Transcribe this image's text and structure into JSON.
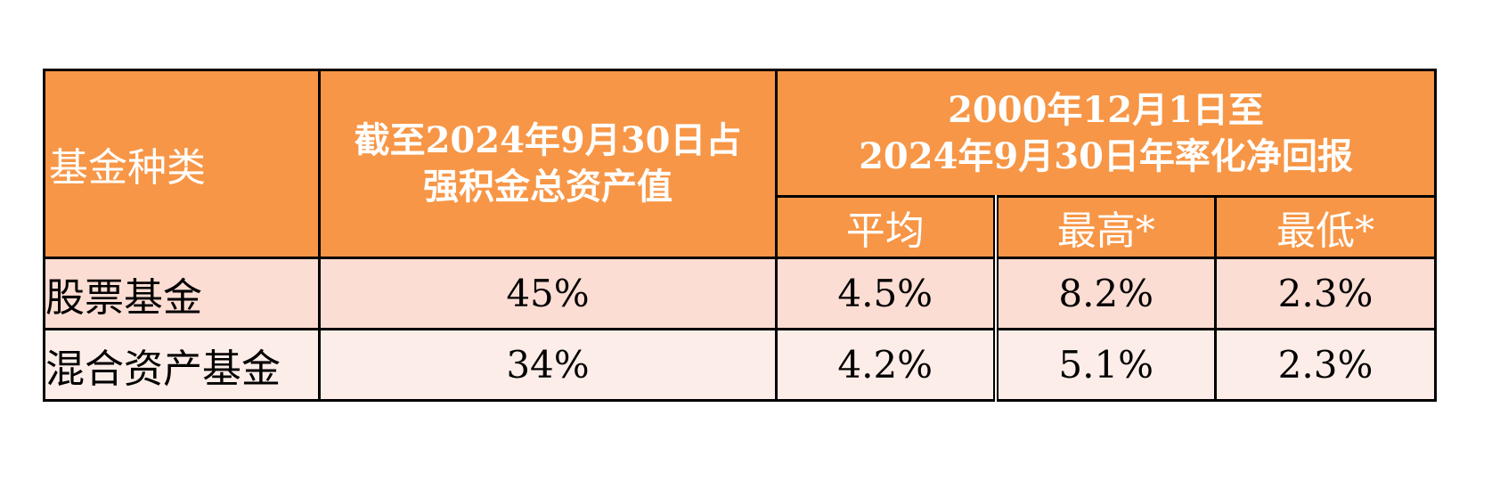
{
  "table": {
    "header": {
      "fund_type": "基金种类",
      "share_line1": "截至2024年9月30日占",
      "share_line2": "强积金总资产值",
      "return_line1": "2000年12月1日至",
      "return_line2": "2024年9月30日年率化净回报",
      "average": "平均",
      "highest": "最高*",
      "lowest": "最低*"
    },
    "rows": [
      {
        "fund_type": "股票基金",
        "share": "45%",
        "average": "4.5%",
        "highest": "8.2%",
        "lowest": "2.3%"
      },
      {
        "fund_type": "混合资产基金",
        "share": "34%",
        "average": "4.2%",
        "highest": "5.1%",
        "lowest": "2.3%"
      }
    ],
    "colors": {
      "header_bg": "#f79646",
      "header_text": "#ffffff",
      "row1_bg": "#fcddd3",
      "row2_bg": "#fdede8",
      "border": "#000000"
    }
  }
}
